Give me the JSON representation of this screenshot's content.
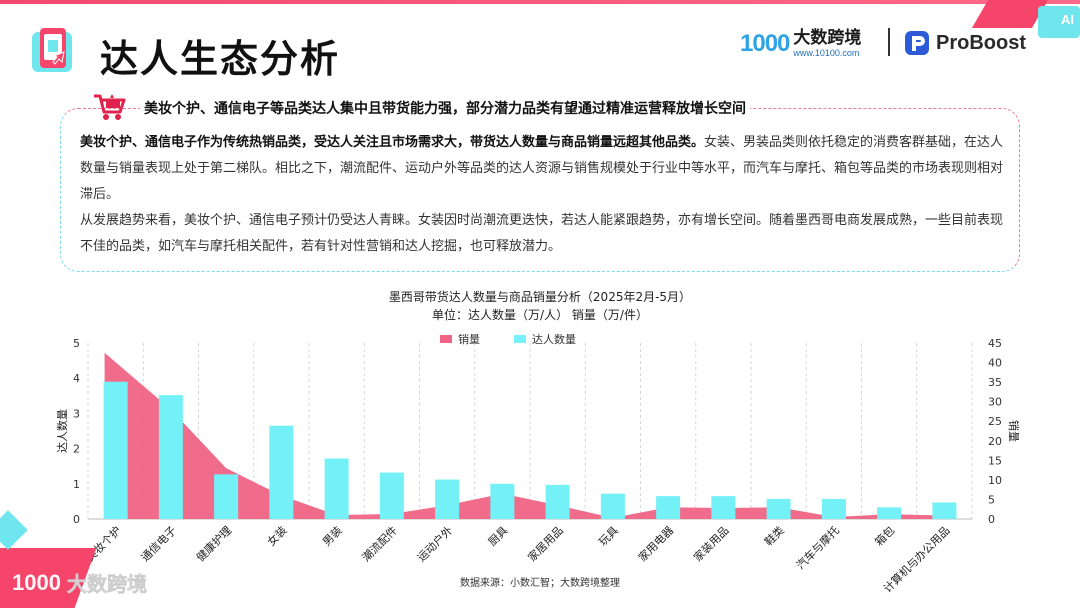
{
  "header": {
    "title": "达人生态分析",
    "logo1_mark": "1000",
    "logo1_name": "大数跨境",
    "logo1_url": "www.10100.com",
    "logo2_name": "ProBoost",
    "ai_badge": "AI"
  },
  "summary": {
    "headline": "美妆个护、通信电子等品类达人集中且带货能力强，部分潜力品类有望通过精准运营释放增长空间",
    "p1_bold": "美妆个护、通信电子作为传统热销品类，受达人关注且市场需求大，带货达人数量与商品销量远超其他品类。",
    "p1_rest": "女装、男装品类则依托稳定的消费客群基础，在达人数量与销量表现上处于第二梯队。相比之下，潮流配件、运动户外等品类的达人资源与销售规模处于行业中等水平，而汽车与摩托、箱包等品类的市场表现则相对滞后。",
    "p2": "从发展趋势来看，美妆个护、通信电子预计仍受达人青睐。女装因时尚潮流更迭快，若达人能紧跟趋势，亦有增长空间。随着墨西哥电商发展成熟，一些目前表现不佳的品类，如汽车与摩托相关配件，若有针对性营销和达人挖掘，也可释放潜力。"
  },
  "chart_data": {
    "type": "bar",
    "title": "墨西哥带货达人数量与商品销量分析（2025年2月-5月）",
    "subtitle": "单位：达人数量（万/人）  销量（万/件）",
    "categories": [
      "美妆个护",
      "通信电子",
      "健康护理",
      "女装",
      "男装",
      "潮流配件",
      "运动户外",
      "厨具",
      "家居用品",
      "玩具",
      "家用电器",
      "家装用品",
      "鞋类",
      "汽车与摩托",
      "箱包",
      "计算机与办公用品"
    ],
    "series": [
      {
        "name": "销量",
        "kind": "area",
        "axis": "right",
        "color": "#f06384",
        "values": [
          42.5,
          28,
          13,
          6,
          1,
          1.3,
          3.5,
          6.5,
          3.5,
          0.3,
          3,
          2.8,
          3,
          0.5,
          1.2,
          0.9
        ]
      },
      {
        "name": "达人数量",
        "kind": "bar",
        "axis": "left",
        "color": "#74f1f6",
        "values": [
          3.9,
          3.52,
          1.27,
          2.65,
          1.72,
          1.32,
          1.12,
          1.0,
          0.97,
          0.72,
          0.65,
          0.65,
          0.57,
          0.57,
          0.33,
          0.47
        ]
      }
    ],
    "ylabel_left": "达人数量",
    "ylabel_right": "销量",
    "ylim_left": [
      0,
      5
    ],
    "yticks_left": [
      "0",
      "1",
      "2",
      "3",
      "4",
      "5"
    ],
    "ylim_right": [
      0,
      45
    ],
    "yticks_right": [
      "0",
      "5",
      "10",
      "15",
      "20",
      "25",
      "30",
      "35",
      "40",
      "45"
    ],
    "grid": "vertical-dashed",
    "legend_position": "top-center",
    "source": "数据来源：小数汇智；大数跨境整理"
  },
  "watermark": {
    "mark": "1000",
    "name": "大数跨境"
  }
}
